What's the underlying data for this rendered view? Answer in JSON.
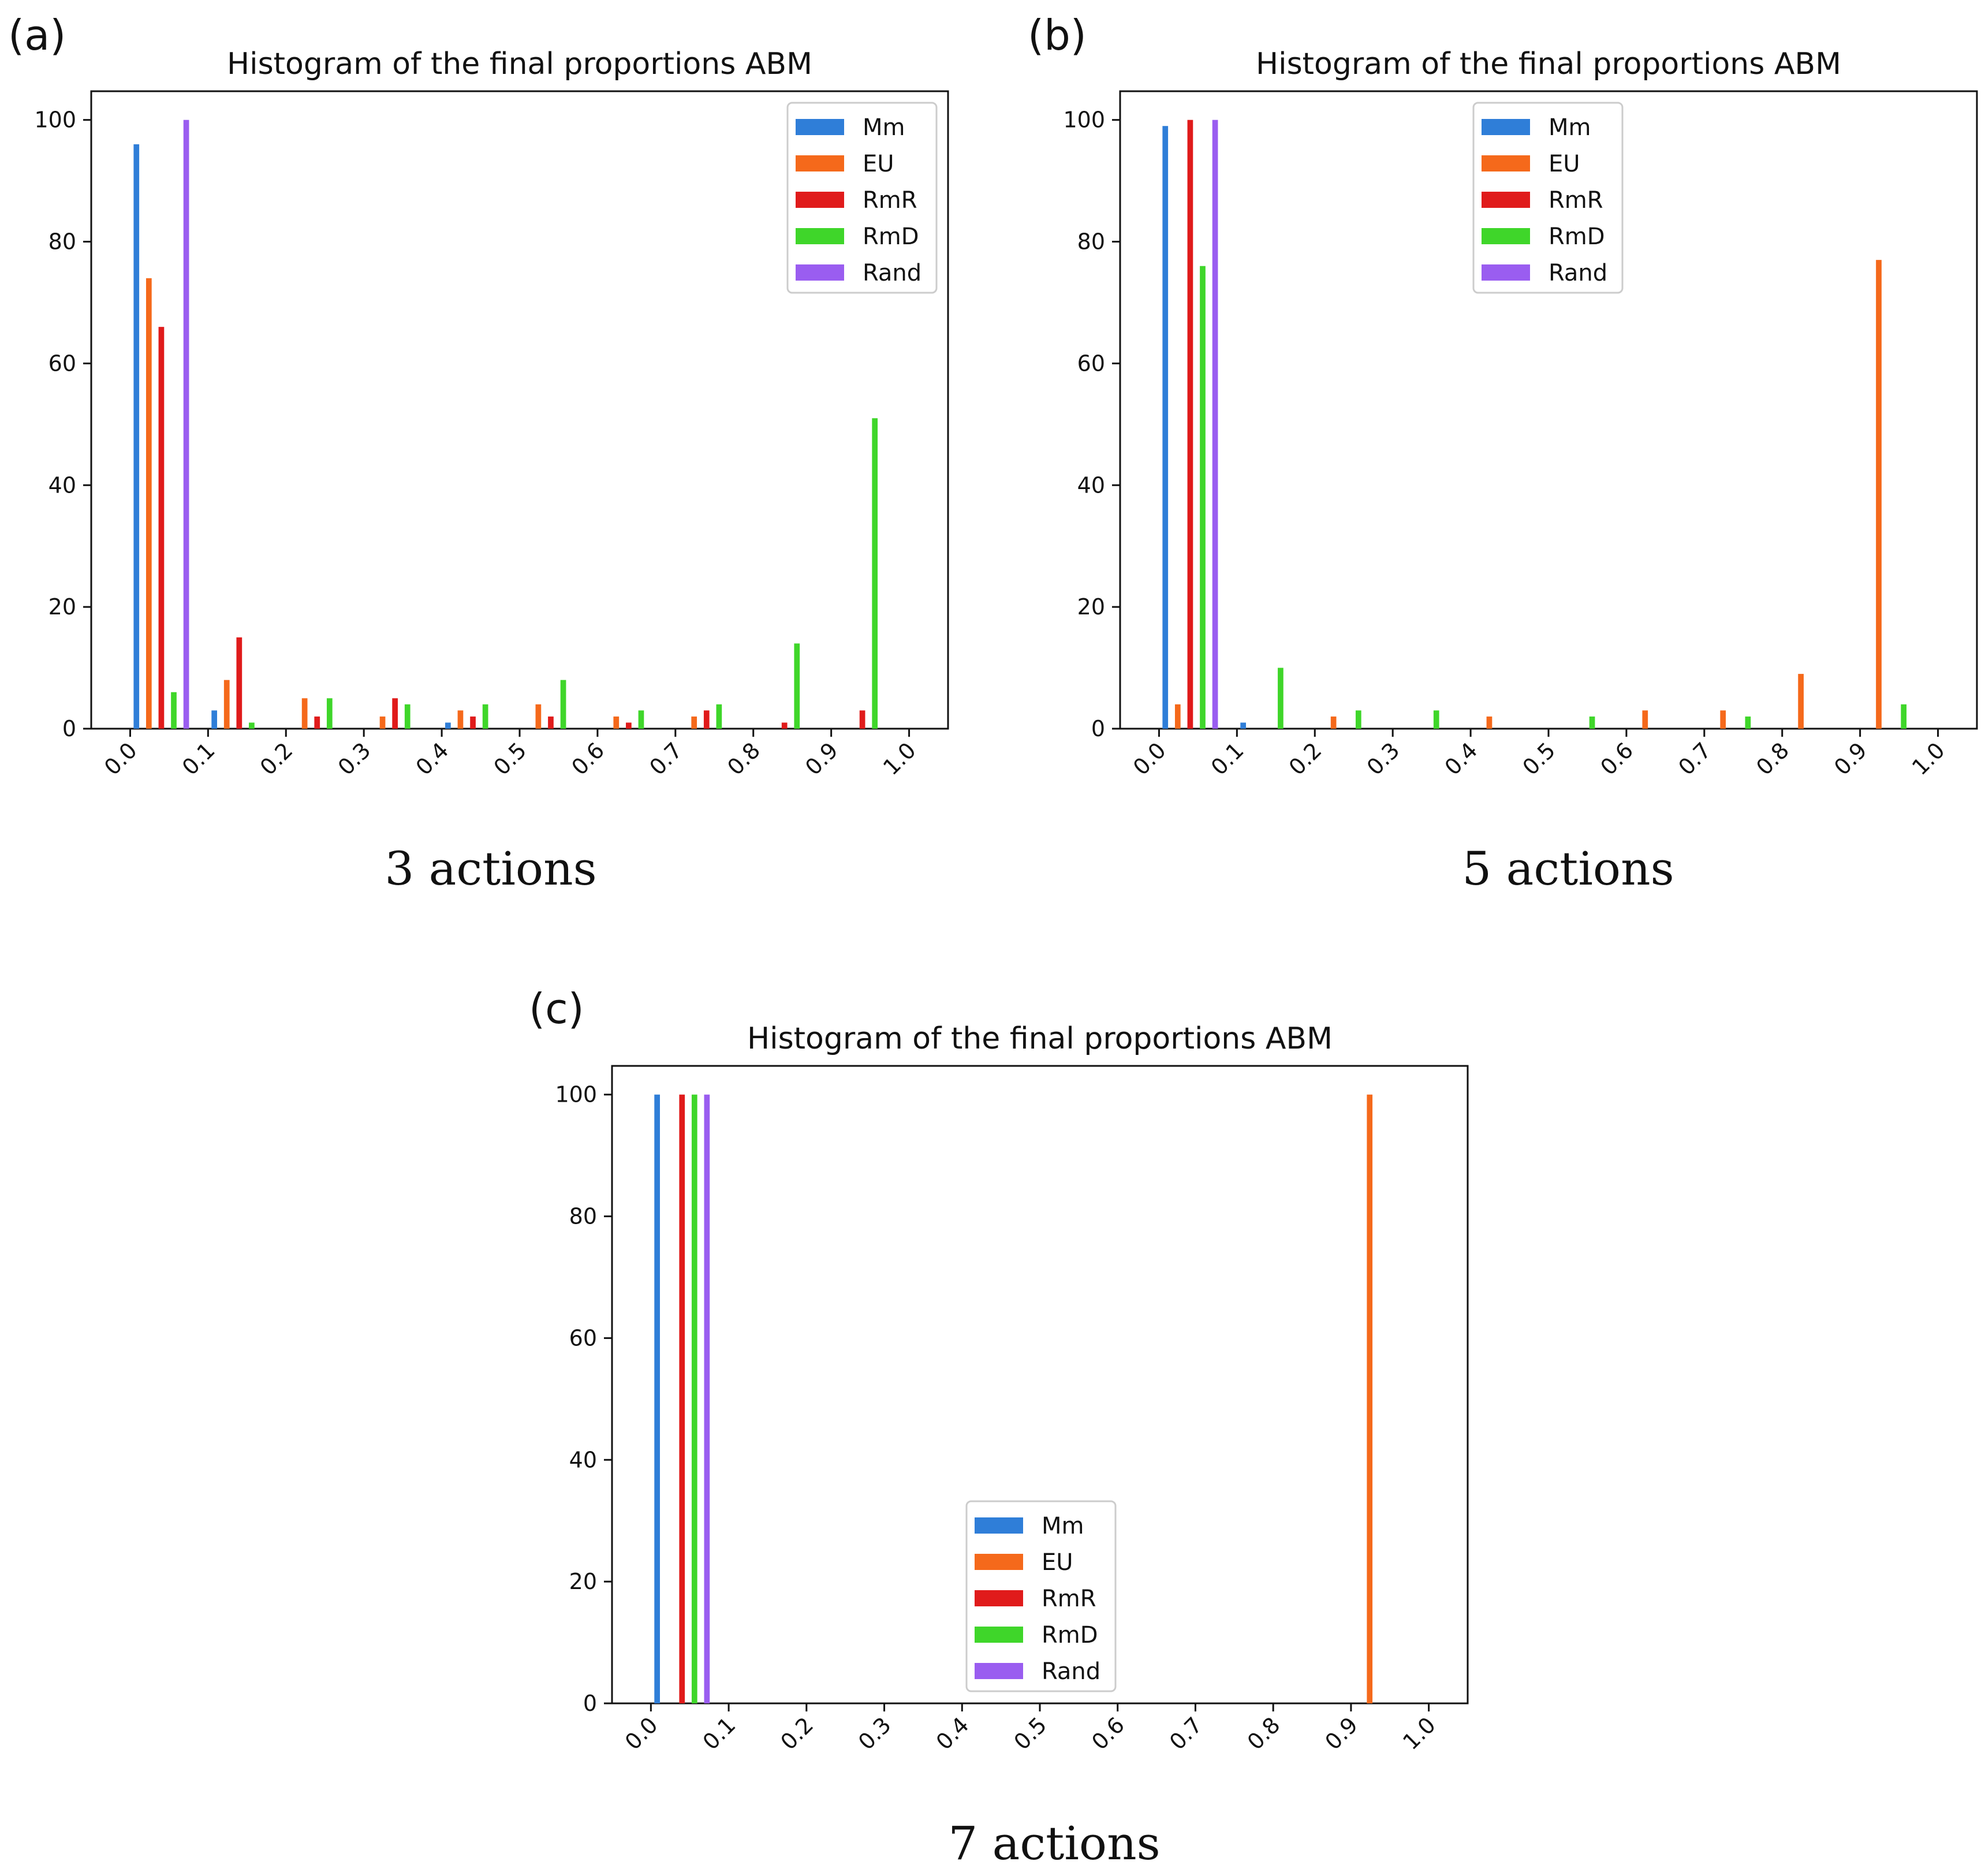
{
  "chart_data": [
    {
      "panel_label": "(a)",
      "type": "bar",
      "title": "Histogram of the final proportions ABM",
      "caption": "3 actions",
      "xlabel": "",
      "ylabel": "",
      "xlim": [
        -0.05,
        1.05
      ],
      "ylim": [
        0,
        100
      ],
      "xticks": [
        0.0,
        0.1,
        0.2,
        0.3,
        0.4,
        0.5,
        0.6,
        0.7,
        0.8,
        0.9,
        1.0
      ],
      "xtick_labels": [
        "0.0",
        "0.1",
        "0.2",
        "0.3",
        "0.4",
        "0.5",
        "0.6",
        "0.7",
        "0.8",
        "0.9",
        "1.0"
      ],
      "yticks": [
        0,
        20,
        40,
        60,
        80,
        100
      ],
      "ytick_labels": [
        "0",
        "20",
        "40",
        "60",
        "80",
        "100"
      ],
      "legend_position": "top-right",
      "bins": [
        "0.0-0.1",
        "0.1-0.2",
        "0.2-0.3",
        "0.3-0.4",
        "0.4-0.5",
        "0.5-0.6",
        "0.6-0.7",
        "0.7-0.8",
        "0.8-0.9",
        "0.9-1.0"
      ],
      "series": [
        {
          "name": "Mm",
          "color": "#2f7ed8",
          "values": [
            96,
            3,
            0,
            0,
            1,
            0,
            0,
            0,
            0,
            0
          ]
        },
        {
          "name": "EU",
          "color": "#f5691b",
          "values": [
            74,
            8,
            5,
            2,
            3,
            4,
            2,
            2,
            0,
            0
          ]
        },
        {
          "name": "RmR",
          "color": "#e01b1b",
          "values": [
            66,
            15,
            2,
            5,
            2,
            2,
            1,
            3,
            1,
            3
          ]
        },
        {
          "name": "RmD",
          "color": "#3fd62a",
          "values": [
            6,
            1,
            5,
            4,
            4,
            8,
            3,
            4,
            14,
            51
          ]
        },
        {
          "name": "Rand",
          "color": "#9a5df0",
          "values": [
            100,
            0,
            0,
            0,
            0,
            0,
            0,
            0,
            0,
            0
          ]
        }
      ]
    },
    {
      "panel_label": "(b)",
      "type": "bar",
      "title": "Histogram of the final proportions ABM",
      "caption": "5 actions",
      "xlabel": "",
      "ylabel": "",
      "xlim": [
        -0.05,
        1.05
      ],
      "ylim": [
        0,
        100
      ],
      "xticks": [
        0.0,
        0.1,
        0.2,
        0.3,
        0.4,
        0.5,
        0.6,
        0.7,
        0.8,
        0.9,
        1.0
      ],
      "xtick_labels": [
        "0.0",
        "0.1",
        "0.2",
        "0.3",
        "0.4",
        "0.5",
        "0.6",
        "0.7",
        "0.8",
        "0.9",
        "1.0"
      ],
      "yticks": [
        0,
        20,
        40,
        60,
        80,
        100
      ],
      "ytick_labels": [
        "0",
        "20",
        "40",
        "60",
        "80",
        "100"
      ],
      "legend_position": "top-center",
      "bins": [
        "0.0-0.1",
        "0.1-0.2",
        "0.2-0.3",
        "0.3-0.4",
        "0.4-0.5",
        "0.5-0.6",
        "0.6-0.7",
        "0.7-0.8",
        "0.8-0.9",
        "0.9-1.0"
      ],
      "series": [
        {
          "name": "Mm",
          "color": "#2f7ed8",
          "values": [
            99,
            1,
            0,
            0,
            0,
            0,
            0,
            0,
            0,
            0
          ]
        },
        {
          "name": "EU",
          "color": "#f5691b",
          "values": [
            4,
            0,
            2,
            0,
            2,
            0,
            3,
            3,
            9,
            77
          ]
        },
        {
          "name": "RmR",
          "color": "#e01b1b",
          "values": [
            100,
            0,
            0,
            0,
            0,
            0,
            0,
            0,
            0,
            0
          ]
        },
        {
          "name": "RmD",
          "color": "#3fd62a",
          "values": [
            76,
            10,
            3,
            3,
            0,
            2,
            0,
            2,
            0,
            4
          ]
        },
        {
          "name": "Rand",
          "color": "#9a5df0",
          "values": [
            100,
            0,
            0,
            0,
            0,
            0,
            0,
            0,
            0,
            0
          ]
        }
      ]
    },
    {
      "panel_label": "(c)",
      "type": "bar",
      "title": "Histogram of the final proportions ABM",
      "caption": "7 actions",
      "xlabel": "",
      "ylabel": "",
      "xlim": [
        -0.05,
        1.05
      ],
      "ylim": [
        0,
        100
      ],
      "xticks": [
        0.0,
        0.1,
        0.2,
        0.3,
        0.4,
        0.5,
        0.6,
        0.7,
        0.8,
        0.9,
        1.0
      ],
      "xtick_labels": [
        "0.0",
        "0.1",
        "0.2",
        "0.3",
        "0.4",
        "0.5",
        "0.6",
        "0.7",
        "0.8",
        "0.9",
        "1.0"
      ],
      "yticks": [
        0,
        20,
        40,
        60,
        80,
        100
      ],
      "ytick_labels": [
        "0",
        "20",
        "40",
        "60",
        "80",
        "100"
      ],
      "legend_position": "bottom-center",
      "bins": [
        "0.0-0.1",
        "0.1-0.2",
        "0.2-0.3",
        "0.3-0.4",
        "0.4-0.5",
        "0.5-0.6",
        "0.6-0.7",
        "0.7-0.8",
        "0.8-0.9",
        "0.9-1.0"
      ],
      "series": [
        {
          "name": "Mm",
          "color": "#2f7ed8",
          "values": [
            100,
            0,
            0,
            0,
            0,
            0,
            0,
            0,
            0,
            0
          ]
        },
        {
          "name": "EU",
          "color": "#f5691b",
          "values": [
            0,
            0,
            0,
            0,
            0,
            0,
            0,
            0,
            0,
            100
          ]
        },
        {
          "name": "RmR",
          "color": "#e01b1b",
          "values": [
            100,
            0,
            0,
            0,
            0,
            0,
            0,
            0,
            0,
            0
          ]
        },
        {
          "name": "RmD",
          "color": "#3fd62a",
          "values": [
            100,
            0,
            0,
            0,
            0,
            0,
            0,
            0,
            0,
            0
          ]
        },
        {
          "name": "Rand",
          "color": "#9a5df0",
          "values": [
            100,
            0,
            0,
            0,
            0,
            0,
            0,
            0,
            0,
            0
          ]
        }
      ]
    }
  ]
}
